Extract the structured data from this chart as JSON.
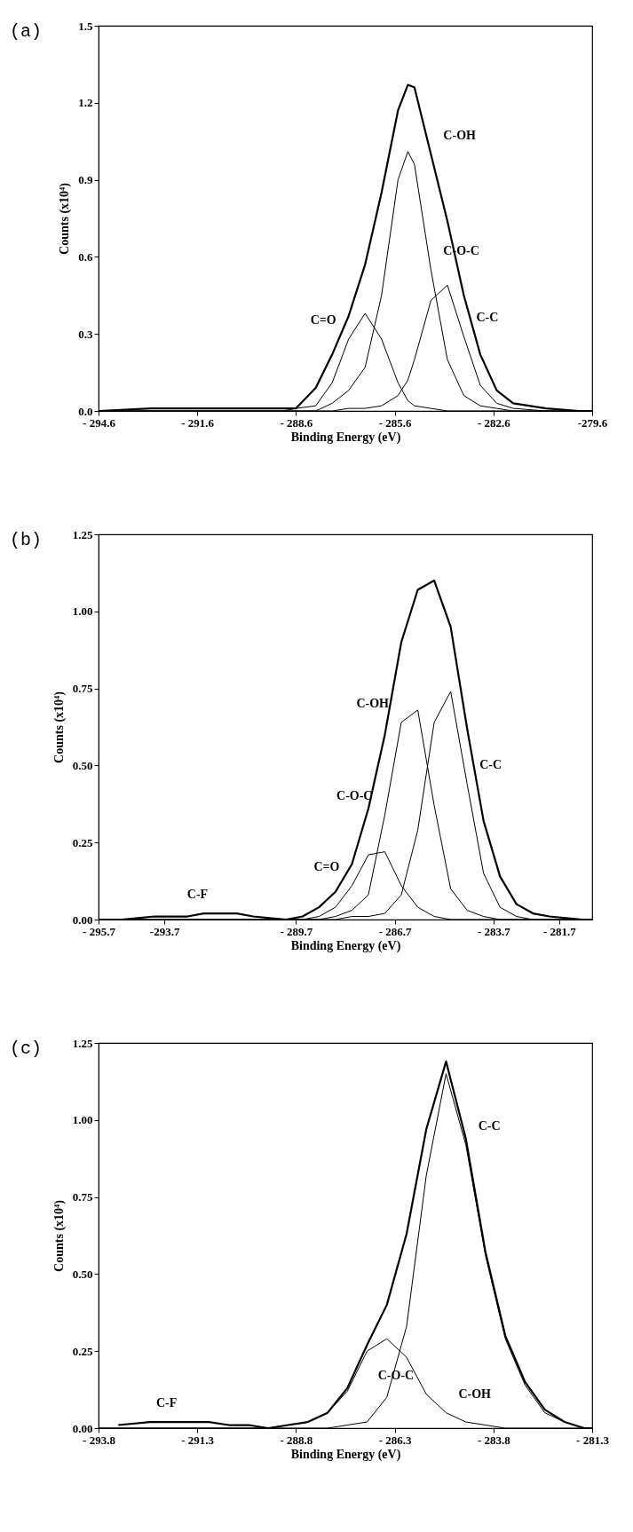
{
  "chart_data": [
    {
      "type": "line",
      "title": "(a)",
      "xlabel": "Binding Energy (eV)",
      "ylabel": "Counts (x10⁴)",
      "x": [
        -294.6,
        -293,
        -292,
        -291,
        -290,
        -289,
        -288.6,
        -288,
        -287.5,
        -287,
        -286.5,
        -286,
        -285.5,
        -285.2,
        -285,
        -284.5,
        -284,
        -283.5,
        -283,
        -282.5,
        -282,
        -281,
        -280,
        -279.6
      ],
      "series": [
        {
          "color": "#000000",
          "values": [
            0,
            0.01,
            0.01,
            0.01,
            0.01,
            0.01,
            0.01,
            0.09,
            0.22,
            0.37,
            0.57,
            0.85,
            1.17,
            1.27,
            1.26,
            1.0,
            0.74,
            0.45,
            0.22,
            0.08,
            0.03,
            0.01,
            0,
            0
          ]
        },
        {
          "color": "#000000",
          "values": [
            0,
            0,
            0,
            0,
            0,
            0,
            0.01,
            0.02,
            0.11,
            0.28,
            0.38,
            0.28,
            0.11,
            0.04,
            0.02,
            0.01,
            0,
            0,
            0,
            0,
            0,
            0,
            0,
            0
          ]
        },
        {
          "color": "#000000",
          "values": [
            0,
            0,
            0,
            0,
            0,
            0,
            0,
            0,
            0.03,
            0.08,
            0.17,
            0.45,
            0.9,
            1.01,
            0.96,
            0.55,
            0.2,
            0.06,
            0.02,
            0.01,
            0,
            0,
            0,
            0
          ]
        },
        {
          "color": "#000000",
          "values": [
            0,
            0,
            0,
            0,
            0,
            0,
            0,
            0,
            0,
            0.01,
            0.01,
            0.02,
            0.06,
            0.12,
            0.2,
            0.43,
            0.49,
            0.29,
            0.1,
            0.03,
            0.01,
            0,
            0,
            0
          ]
        }
      ],
      "xlim": [
        -294.6,
        -279.6
      ],
      "xticks": [
        {
          "value": -294.6,
          "label": "- 294.6"
        },
        {
          "value": -291.6,
          "label": "- 291.6"
        },
        {
          "value": -288.6,
          "label": "- 288.6"
        },
        {
          "value": -285.6,
          "label": "- 285.6"
        },
        {
          "value": -282.6,
          "label": "- 282.6"
        },
        {
          "value": -279.6,
          "label": "-279.6"
        }
      ],
      "ylim": [
        0,
        1.5
      ],
      "yticks": [
        {
          "value": 0,
          "label": "0.0"
        },
        0.3,
        0.6,
        0.9,
        1.2,
        1.5
      ],
      "annotations": [
        {
          "text": "C-OH",
          "x": -284.5,
          "y": 1.0
        },
        {
          "text": "C-O-C",
          "x": -284.5,
          "y": 0.55
        },
        {
          "text": "C=O",
          "x": -287,
          "y": 0.28
        },
        {
          "text": "C-C",
          "x": -283.5,
          "y": 0.29
        }
      ]
    },
    {
      "type": "line",
      "title": "(b)",
      "xlabel": "Binding Energy (eV)",
      "ylabel": "Counts (x10⁴)",
      "x": [
        -295.7,
        -295,
        -294,
        -293,
        -292.5,
        -292,
        -291.5,
        -291,
        -290,
        -289.5,
        -289,
        -288.5,
        -288,
        -287.5,
        -287,
        -286.5,
        -286,
        -285.5,
        -285,
        -284.5,
        -284,
        -283.5,
        -283,
        -282.5,
        -282,
        -281,
        -280.7
      ],
      "series": [
        {
          "color": "#000000",
          "values": [
            0,
            0,
            0.01,
            0.01,
            0.02,
            0.02,
            0.02,
            0.01,
            0,
            0.01,
            0.04,
            0.09,
            0.18,
            0.36,
            0.6,
            0.9,
            1.07,
            1.1,
            0.95,
            0.62,
            0.32,
            0.14,
            0.05,
            0.02,
            0.01,
            0,
            0
          ]
        },
        {
          "color": "#000000",
          "values": [
            0,
            0,
            0,
            0,
            0,
            0,
            0,
            0,
            0,
            0,
            0.01,
            0.04,
            0.11,
            0.21,
            0.22,
            0.11,
            0.04,
            0.01,
            0,
            0,
            0,
            0,
            0,
            0,
            0,
            0,
            0
          ]
        },
        {
          "color": "#000000",
          "values": [
            0,
            0,
            0,
            0,
            0,
            0,
            0,
            0,
            0,
            0,
            0,
            0.01,
            0.03,
            0.08,
            0.34,
            0.64,
            0.68,
            0.37,
            0.1,
            0.03,
            0.01,
            0,
            0,
            0,
            0,
            0,
            0
          ]
        },
        {
          "color": "#000000",
          "values": [
            0,
            0,
            0,
            0,
            0,
            0,
            0,
            0,
            0,
            0,
            0,
            0,
            0.01,
            0.01,
            0.02,
            0.08,
            0.29,
            0.64,
            0.74,
            0.44,
            0.15,
            0.04,
            0.01,
            0,
            0,
            0,
            0
          ]
        }
      ],
      "xlim": [
        -295.7,
        -280.7
      ],
      "xticks": [
        {
          "value": -295.7,
          "label": "- 295.7"
        },
        -293.7,
        {
          "value": -289.7,
          "label": "- 289.7"
        },
        {
          "value": -286.7,
          "label": "- 286.7"
        },
        {
          "value": -283.7,
          "label": "- 283.7"
        },
        {
          "value": -281.7,
          "label": "- 281.7"
        }
      ],
      "ylim": [
        0,
        1.25
      ],
      "yticks": [
        {
          "value": 0,
          "label": "0.00"
        },
        0.25,
        {
          "value": 0.5,
          "label": "0.50"
        },
        0.75,
        {
          "value": 1,
          "label": "1.00"
        },
        1.25
      ],
      "annotations": [
        {
          "text": "C-F",
          "x": -292,
          "y": 0.02
        },
        {
          "text": "C=O",
          "x": -288,
          "y": 0.11
        },
        {
          "text": "C-O-C",
          "x": -287,
          "y": 0.34
        },
        {
          "text": "C-OH",
          "x": -286.5,
          "y": 0.64
        },
        {
          "text": "C-C",
          "x": -284.5,
          "y": 0.44
        }
      ]
    },
    {
      "type": "line",
      "title": "(c)",
      "xlabel": "Binding Energy (eV)",
      "ylabel": "Counts (x10⁴)",
      "x": [
        -293.8,
        -293.3,
        -292.5,
        -292,
        -291.5,
        -291,
        -290.5,
        -290,
        -289.5,
        -289,
        -288.5,
        -288,
        -287.5,
        -287,
        -286.5,
        -286,
        -285.5,
        -285,
        -284.5,
        -284,
        -283.5,
        -283,
        -282.5,
        -282,
        -281.5,
        -281.3
      ],
      "series": [
        {
          "color": "#000000",
          "values": [
            null,
            0.01,
            0.02,
            0.02,
            0.02,
            0.02,
            0.01,
            0.01,
            0,
            0.01,
            0.02,
            0.05,
            0.13,
            0.27,
            0.4,
            0.63,
            0.97,
            1.19,
            0.94,
            0.57,
            0.3,
            0.15,
            0.06,
            0.02,
            0,
            0
          ]
        },
        {
          "color": "#000000",
          "values": [
            0,
            0,
            0,
            0,
            0,
            0,
            0,
            0,
            0,
            0.01,
            0.02,
            0.05,
            0.12,
            0.25,
            0.29,
            0.23,
            0.11,
            0.05,
            0.02,
            0.01,
            0,
            0,
            0,
            0,
            0,
            0
          ]
        },
        {
          "color": "#000000",
          "values": [
            0,
            0,
            0,
            0,
            0,
            0,
            0,
            0,
            0,
            0,
            0,
            0,
            0.01,
            0.02,
            0.1,
            0.33,
            0.82,
            1.15,
            0.92,
            0.56,
            0.29,
            0.14,
            0.05,
            0.02,
            0,
            0
          ]
        }
      ],
      "xlim": [
        -293.8,
        -281.3
      ],
      "xticks": [
        {
          "value": -293.8,
          "label": "- 293.8"
        },
        {
          "value": -291.3,
          "label": "- 291.3"
        },
        {
          "value": -288.8,
          "label": "- 288.8"
        },
        {
          "value": -286.3,
          "label": "- 286.3"
        },
        {
          "value": -283.8,
          "label": "- 283.8"
        },
        {
          "value": -281.3,
          "label": "- 281.3"
        }
      ],
      "ylim": [
        0,
        1.25
      ],
      "yticks": [
        {
          "value": 0,
          "label": "0.00"
        },
        0.25,
        {
          "value": 0.5,
          "label": "0.50"
        },
        0.75,
        {
          "value": 1,
          "label": "1.00"
        },
        1.25
      ],
      "annotations": [
        {
          "text": "C-F",
          "x": -291.5,
          "y": 0.02
        },
        {
          "text": "C-C",
          "x": -284.5,
          "y": 0.92
        },
        {
          "text": "C-O-C",
          "x": -285.5,
          "y": 0.11
        },
        {
          "text": "C-OH",
          "x": -285,
          "y": 0.05
        }
      ]
    }
  ]
}
